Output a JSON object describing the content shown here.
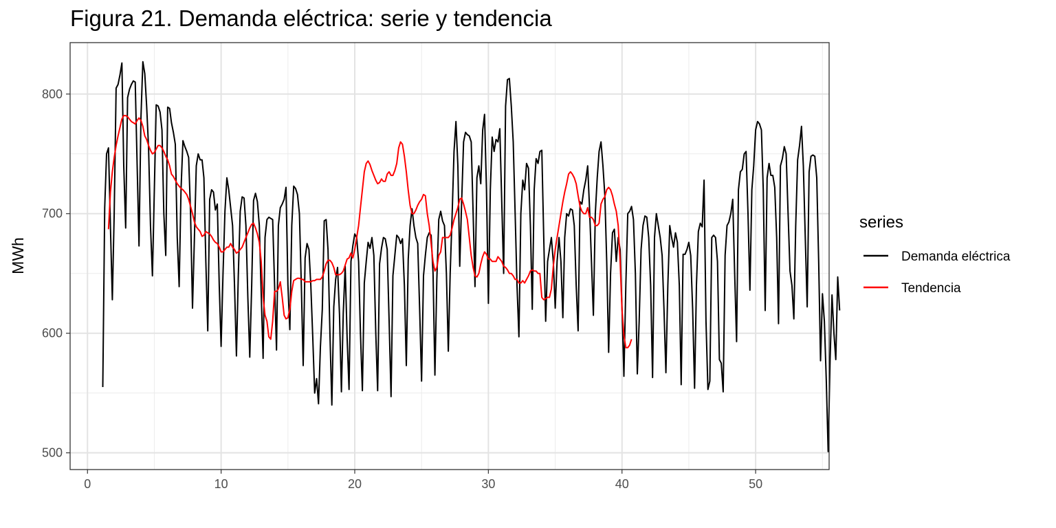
{
  "chart_data": {
    "type": "line",
    "title": "Figura 21. Demanda eléctrica: serie y tendencia",
    "xlabel": "",
    "ylabel": "MWh",
    "xlim": [
      -1.3,
      55.5
    ],
    "ylim": [
      486,
      843
    ],
    "x_ticks": [
      0,
      10,
      20,
      30,
      40,
      50
    ],
    "y_ticks": [
      500,
      600,
      700,
      800
    ],
    "grid": true,
    "legend": {
      "title": "series",
      "position": "right"
    },
    "series": [
      {
        "name": "Demanda eléctrica",
        "color": "#000000",
        "x_start": 1.143,
        "x_step": 0.14286,
        "values": [
          555,
          705,
          750,
          755,
          690,
          628,
          700,
          805,
          808,
          816,
          826,
          740,
          688,
          797,
          804,
          808,
          811,
          810,
          740,
          673,
          780,
          827,
          817,
          790,
          755,
          690,
          648,
          720,
          791,
          790,
          785,
          770,
          700,
          665,
          789,
          788,
          776,
          768,
          758,
          680,
          639,
          720,
          761,
          756,
          752,
          747,
          700,
          621,
          680,
          740,
          750,
          745,
          745,
          730,
          660,
          602,
          712,
          720,
          718,
          703,
          708,
          640,
          589,
          650,
          702,
          730,
          720,
          705,
          690,
          640,
          581,
          648,
          702,
          714,
          713,
          690,
          630,
          580,
          640,
          711,
          717,
          710,
          690,
          632,
          579,
          680,
          695,
          697,
          696,
          695,
          640,
          586,
          690,
          705,
          708,
          712,
          722,
          640,
          603,
          690,
          723,
          721,
          716,
          700,
          640,
          573,
          663,
          675,
          670,
          640,
          597,
          550,
          562,
          541,
          588,
          620,
          694,
          695,
          670,
          600,
          540,
          622,
          645,
          655,
          616,
          551,
          617,
          656,
          596,
          553,
          660,
          673,
          683,
          680,
          660,
          600,
          552,
          642,
          660,
          676,
          671,
          680,
          665,
          600,
          552,
          658,
          671,
          680,
          679,
          670,
          610,
          547,
          648,
          665,
          682,
          680,
          675,
          679,
          640,
          573,
          662,
          690,
          704,
          690,
          680,
          675,
          620,
          560,
          648,
          665,
          680,
          684,
          682,
          650,
          565,
          645,
          695,
          702,
          694,
          690,
          650,
          585,
          650,
          698,
          752,
          777,
          740,
          656,
          710,
          760,
          768,
          766,
          765,
          760,
          700,
          639,
          730,
          740,
          725,
          770,
          783,
          720,
          625,
          720,
          764,
          752,
          762,
          760,
          771,
          710,
          650,
          790,
          812,
          813,
          790,
          760,
          700,
          640,
          597,
          700,
          728,
          720,
          742,
          738,
          690,
          620,
          720,
          746,
          742,
          752,
          753,
          680,
          610,
          660,
          670,
          680,
          660,
          621,
          660,
          680,
          660,
          613,
          680,
          700,
          698,
          704,
          703,
          690,
          640,
          602,
          710,
          708,
          720,
          728,
          740,
          705,
          660,
          615,
          700,
          730,
          752,
          760,
          740,
          715,
          660,
          584,
          650,
          684,
          687,
          660,
          680,
          670,
          620,
          564,
          640,
          700,
          702,
          706,
          695,
          650,
          566,
          610,
          670,
          690,
          698,
          697,
          680,
          640,
          563,
          680,
          700,
          690,
          680,
          665,
          620,
          567,
          640,
          690,
          680,
          672,
          684,
          676,
          640,
          557,
          666,
          666,
          670,
          676,
          665,
          620,
          554,
          640,
          685,
          692,
          689,
          728,
          610,
          553,
          560,
          680,
          682,
          680,
          660,
          578,
          575,
          551,
          665,
          690,
          693,
          700,
          712,
          650,
          593,
          720,
          735,
          737,
          750,
          752,
          700,
          636,
          720,
          740,
          770,
          777,
          775,
          770,
          720,
          619,
          730,
          742,
          732,
          732,
          722,
          680,
          608,
          740,
          746,
          756,
          750,
          700,
          652,
          640,
          612,
          690,
          745,
          757,
          773,
          740,
          680,
          622,
          735,
          748,
          749,
          748,
          730,
          660,
          577,
          633,
          610,
          560,
          501,
          578,
          632,
          600,
          578,
          647,
          619
        ]
      },
      {
        "name": "Tendencia",
        "color": "#ff0000",
        "x_start": 1.571,
        "x_step": 0.14286,
        "values": [
          687,
          718,
          735,
          747,
          757,
          765,
          772,
          779,
          782,
          782,
          781,
          779,
          777,
          776,
          775,
          778,
          780,
          778,
          773,
          765,
          762,
          757,
          753,
          750,
          751,
          754,
          757,
          757,
          755,
          752,
          748,
          745,
          740,
          733,
          731,
          728,
          725,
          723,
          721,
          720,
          718,
          716,
          712,
          706,
          700,
          693,
          689,
          687,
          685,
          681,
          682,
          685,
          684,
          683,
          681,
          678,
          676,
          675,
          672,
          668,
          668,
          670,
          672,
          672,
          675,
          672,
          670,
          667,
          668,
          670,
          672,
          676,
          680,
          684,
          688,
          691,
          692,
          688,
          683,
          676,
          660,
          630,
          615,
          610,
          597,
          595,
          610,
          635,
          635,
          637,
          643,
          630,
          615,
          612,
          613,
          620,
          635,
          644,
          645,
          646,
          646,
          645,
          645,
          643,
          643,
          643,
          643,
          644,
          644,
          645,
          645,
          645,
          647,
          652,
          658,
          661,
          661,
          659,
          655,
          649,
          649,
          649,
          650,
          652,
          657,
          662,
          663,
          667,
          663,
          670,
          680,
          690,
          705,
          720,
          735,
          742,
          744,
          741,
          736,
          732,
          728,
          725,
          726,
          729,
          727,
          727,
          733,
          735,
          732,
          732,
          736,
          742,
          755,
          760,
          758,
          748,
          735,
          720,
          707,
          700,
          700,
          703,
          707,
          710,
          712,
          716,
          715,
          700,
          690,
          675,
          660,
          652,
          655,
          665,
          668,
          680,
          680,
          680,
          680,
          682,
          688,
          695,
          700,
          705,
          712,
          713,
          708,
          702,
          695,
          680,
          665,
          655,
          648,
          647,
          650,
          658,
          664,
          668,
          666,
          662,
          662,
          660,
          660,
          660,
          664,
          662,
          660,
          656,
          655,
          653,
          650,
          650,
          648,
          645,
          645,
          642,
          642,
          644,
          642,
          645,
          648,
          652,
          653,
          652,
          652,
          650,
          650,
          630,
          628,
          629,
          630,
          630,
          637,
          656,
          670,
          680,
          690,
          700,
          710,
          718,
          725,
          733,
          735,
          733,
          730,
          725,
          715,
          706,
          702,
          700,
          700,
          705,
          697,
          697,
          695,
          690,
          690,
          692,
          708,
          712,
          714,
          720,
          722,
          720,
          715,
          708,
          702,
          690,
          660,
          620,
          598,
          588,
          588,
          590,
          595
        ]
      }
    ]
  }
}
